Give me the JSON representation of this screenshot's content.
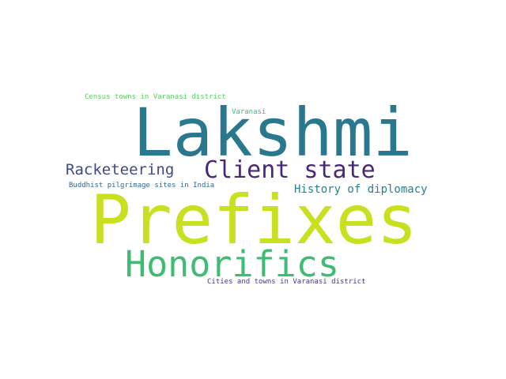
{
  "words": [
    {
      "text": "Lakshmi",
      "color": "#2a788e"
    },
    {
      "text": "Prefixes",
      "color": "#c8e020"
    },
    {
      "text": "Honorifics",
      "color": "#3fbc73"
    },
    {
      "text": "Client state",
      "color": "#482878"
    },
    {
      "text": "Racketeering",
      "color": "#3e4989"
    },
    {
      "text": "History of diplomacy",
      "color": "#26828e"
    },
    {
      "text": "Census towns in Varanasi district",
      "color": "#5ec962"
    },
    {
      "text": "Varanasi",
      "color": "#3fbc73"
    },
    {
      "text": "Buddhist pilgrimage sites in India",
      "color": "#31688e"
    },
    {
      "text": "Cities and towns in Varanasi district",
      "color": "#443983"
    }
  ]
}
